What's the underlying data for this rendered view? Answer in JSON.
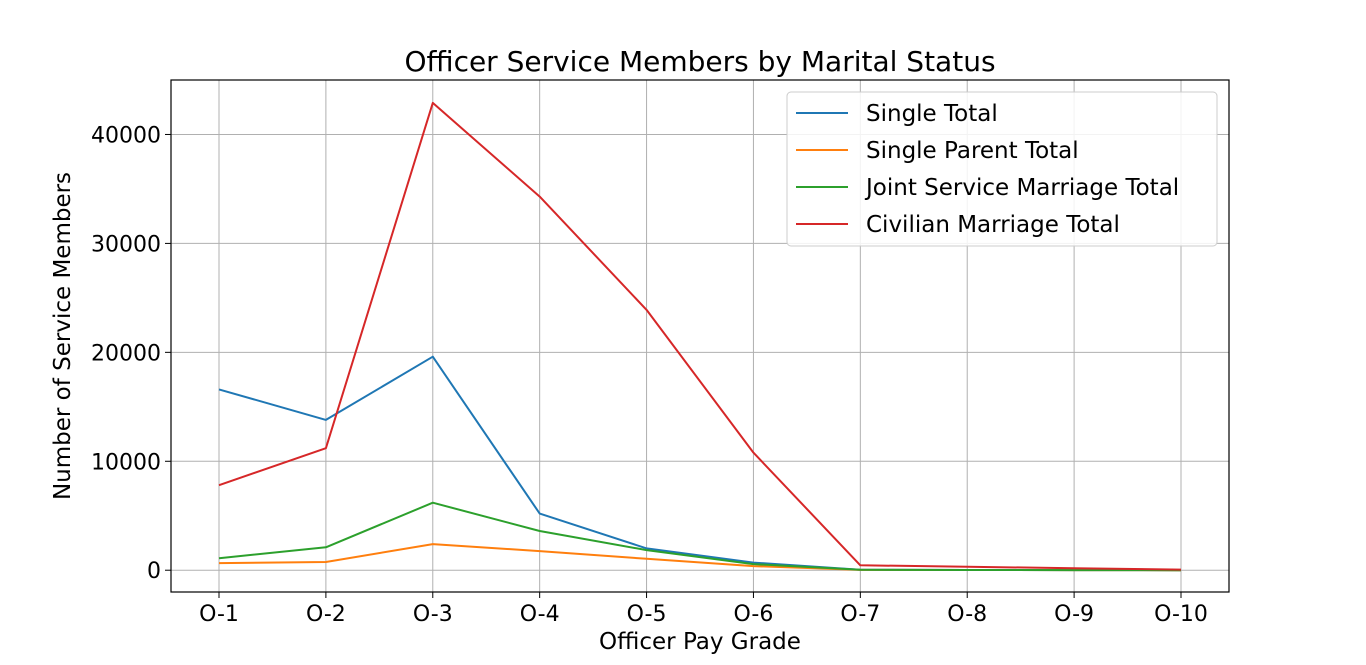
{
  "chart_data": {
    "type": "line",
    "title": "Officer Service Members by Marital Status",
    "xlabel": "Officer Pay Grade",
    "ylabel": "Number of Service Members",
    "categories": [
      "O-1",
      "O-2",
      "O-3",
      "O-4",
      "O-5",
      "O-6",
      "O-7",
      "O-8",
      "O-9",
      "O-10"
    ],
    "ylim": [
      -2000,
      45000
    ],
    "yticks": [
      0,
      10000,
      20000,
      30000,
      40000
    ],
    "grid": true,
    "legend_position": "top-right",
    "series": [
      {
        "name": "Single Total",
        "color": "#1f77b4",
        "values": [
          16600,
          13800,
          19600,
          5200,
          2000,
          700,
          50,
          20,
          10,
          5
        ]
      },
      {
        "name": "Single Parent Total",
        "color": "#ff7f0e",
        "values": [
          650,
          750,
          2400,
          1750,
          1050,
          380,
          30,
          15,
          8,
          3
        ]
      },
      {
        "name": "Joint Service Marriage Total",
        "color": "#2ca02c",
        "values": [
          1100,
          2100,
          6200,
          3600,
          1850,
          560,
          40,
          20,
          10,
          5
        ]
      },
      {
        "name": "Civilian Marriage Total",
        "color": "#d62728",
        "values": [
          7800,
          11200,
          42900,
          34300,
          23900,
          10800,
          450,
          320,
          180,
          60
        ]
      }
    ]
  }
}
